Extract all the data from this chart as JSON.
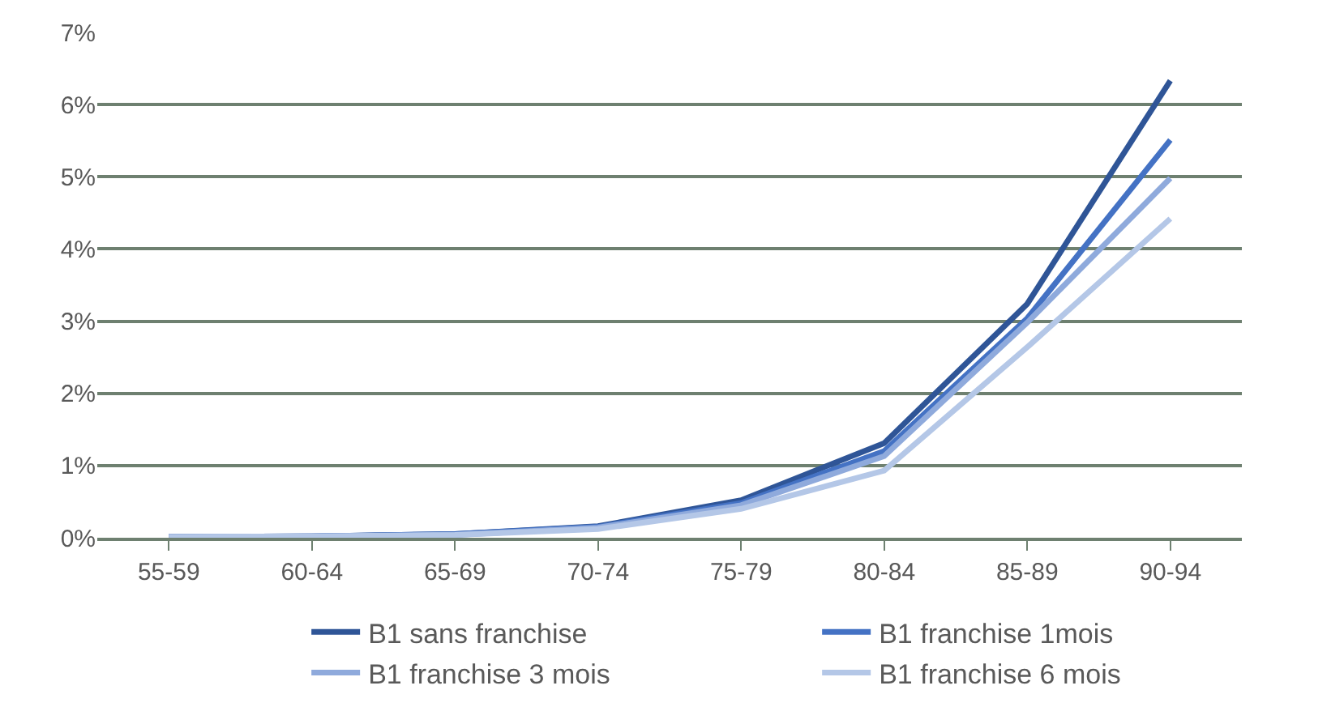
{
  "chart_data": {
    "type": "line",
    "categories": [
      "55-59",
      "60-64",
      "65-69",
      "70-74",
      "75-79",
      "80-84",
      "85-89",
      "90-94"
    ],
    "series": [
      {
        "name": "B1 sans franchise",
        "color": "#2f5597",
        "values": [
          0.01,
          0.02,
          0.05,
          0.16,
          0.52,
          1.31,
          3.24,
          6.33
        ]
      },
      {
        "name": "B1 franchise 1mois",
        "color": "#4472c4",
        "values": [
          0.01,
          0.02,
          0.05,
          0.15,
          0.48,
          1.2,
          3.04,
          5.51
        ]
      },
      {
        "name": "B1 franchise 3 mois",
        "color": "#8faadc",
        "values": [
          0.01,
          0.02,
          0.04,
          0.14,
          0.45,
          1.13,
          2.98,
          4.98
        ]
      },
      {
        "name": "B1 franchise 6 mois",
        "color": "#b4c7e7",
        "values": [
          0.01,
          0.02,
          0.04,
          0.12,
          0.4,
          0.93,
          2.64,
          4.42
        ]
      }
    ],
    "ylim": [
      0,
      7
    ],
    "yticks": [
      {
        "value": 0,
        "label": "0%"
      },
      {
        "value": 1,
        "label": "1%"
      },
      {
        "value": 2,
        "label": "2%"
      },
      {
        "value": 3,
        "label": "3%"
      },
      {
        "value": 4,
        "label": "4%"
      },
      {
        "value": 5,
        "label": "5%"
      },
      {
        "value": 6,
        "label": "6%"
      },
      {
        "value": 7,
        "label": "7%"
      }
    ],
    "grid": "y",
    "legend": "bottom",
    "marker": "none",
    "line_style": "solid"
  }
}
